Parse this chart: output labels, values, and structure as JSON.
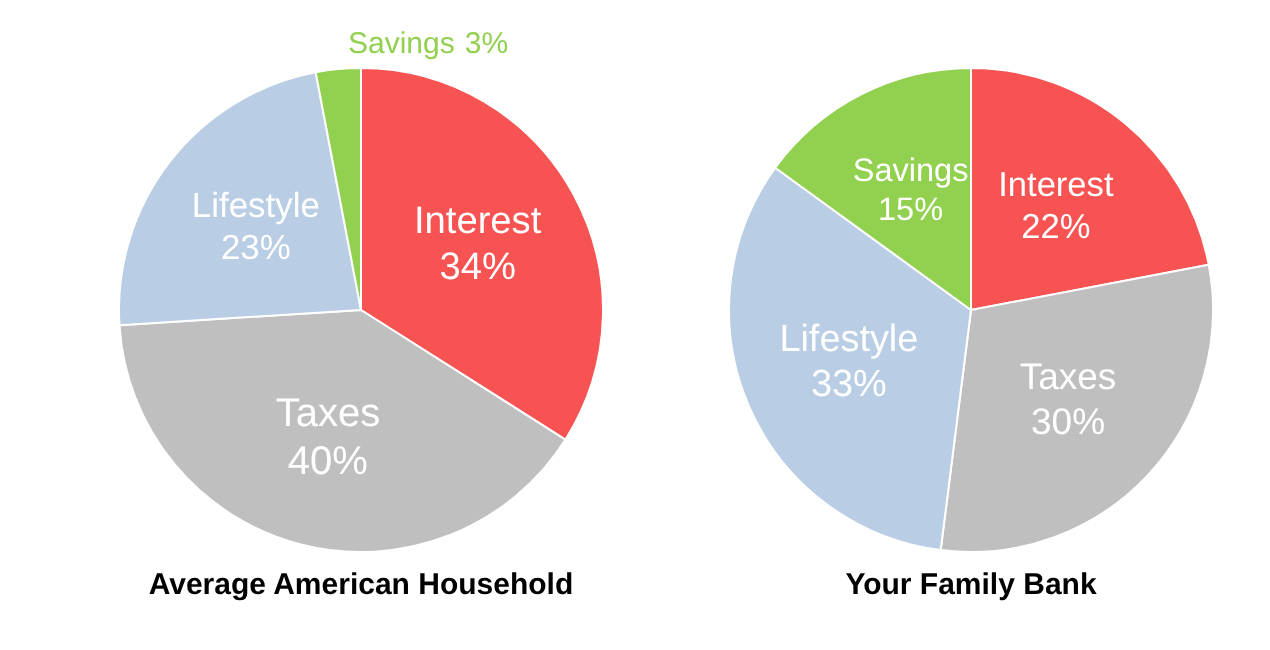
{
  "chart_data": [
    {
      "type": "pie",
      "title": "Average American Household",
      "categories": [
        "Interest",
        "Taxes",
        "Lifestyle",
        "Savings"
      ],
      "values": [
        34,
        40,
        23,
        3
      ],
      "value_labels": [
        "34%",
        "40%",
        "23%",
        "3%"
      ],
      "colors": [
        "#f65352",
        "#bfbfbf",
        "#b9cde5",
        "#92d050"
      ],
      "legend": false
    },
    {
      "type": "pie",
      "title": "Your Family Bank",
      "categories": [
        "Interest",
        "Taxes",
        "Lifestyle",
        "Savings"
      ],
      "values": [
        22,
        30,
        33,
        15
      ],
      "value_labels": [
        "22%",
        "30%",
        "33%",
        "15%"
      ],
      "colors": [
        "#f65352",
        "#bfbfbf",
        "#b9cde5",
        "#92d050"
      ],
      "legend": false
    }
  ]
}
